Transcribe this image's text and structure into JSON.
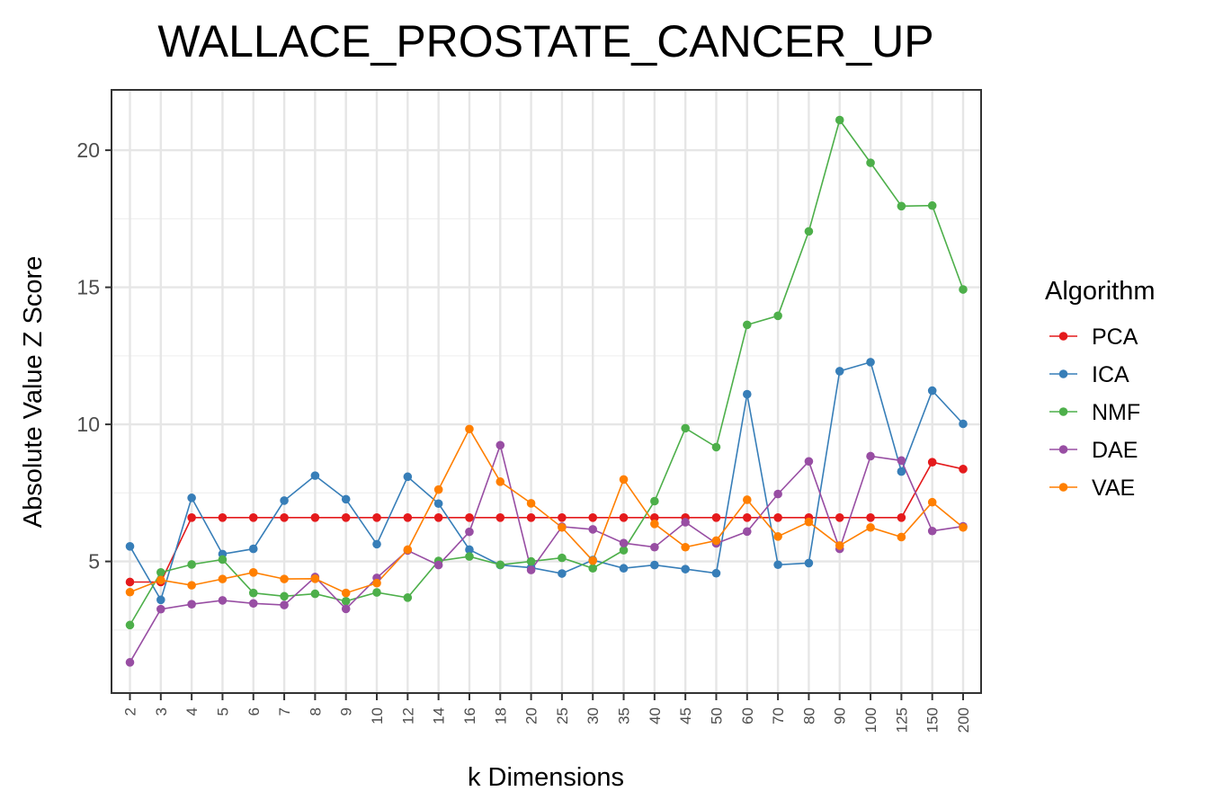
{
  "chart_data": {
    "type": "line",
    "title": "WALLACE_PROSTATE_CANCER_UP",
    "xlabel": "k Dimensions",
    "ylabel": "Absolute Value Z Score",
    "categories": [
      "2",
      "3",
      "4",
      "5",
      "6",
      "7",
      "8",
      "9",
      "10",
      "12",
      "14",
      "16",
      "18",
      "20",
      "25",
      "30",
      "35",
      "40",
      "45",
      "50",
      "60",
      "70",
      "80",
      "90",
      "100",
      "125",
      "150",
      "200"
    ],
    "yticks": [
      "5",
      "10",
      "15",
      "20"
    ],
    "ylim": [
      0.2,
      22.2
    ],
    "grid": true,
    "legend": {
      "title": "Algorithm",
      "position": "right"
    },
    "series": [
      {
        "name": "PCA",
        "color": "#e41a1c",
        "values": [
          4.25,
          4.25,
          6.6,
          6.6,
          6.6,
          6.6,
          6.6,
          6.6,
          6.6,
          6.6,
          6.6,
          6.6,
          6.6,
          6.6,
          6.6,
          6.6,
          6.6,
          6.6,
          6.6,
          6.6,
          6.6,
          6.6,
          6.6,
          6.6,
          6.6,
          6.6,
          8.62,
          8.37
        ]
      },
      {
        "name": "ICA",
        "color": "#377eb8",
        "values": [
          5.55,
          3.6,
          7.32,
          5.27,
          5.46,
          7.22,
          8.13,
          7.27,
          5.63,
          8.09,
          7.11,
          5.43,
          4.87,
          4.77,
          4.56,
          5.05,
          4.75,
          4.87,
          4.72,
          4.57,
          11.1,
          4.88,
          4.94,
          11.94,
          12.27,
          8.28,
          11.23,
          10.02
        ]
      },
      {
        "name": "NMF",
        "color": "#4daf4a",
        "values": [
          2.68,
          4.6,
          4.89,
          5.07,
          3.85,
          3.73,
          3.82,
          3.55,
          3.87,
          3.68,
          5.02,
          5.18,
          4.88,
          5.0,
          5.13,
          4.75,
          5.41,
          7.2,
          9.86,
          9.17,
          13.63,
          13.96,
          17.04,
          21.1,
          19.54,
          17.96,
          17.98,
          14.92
        ]
      },
      {
        "name": "DAE",
        "color": "#984ea3",
        "values": [
          1.32,
          3.26,
          3.44,
          3.58,
          3.47,
          3.41,
          4.43,
          3.27,
          4.4,
          5.4,
          4.87,
          6.08,
          9.24,
          4.69,
          6.27,
          6.17,
          5.67,
          5.52,
          6.43,
          5.66,
          6.09,
          7.46,
          8.65,
          5.46,
          8.84,
          8.68,
          6.11,
          6.28
        ]
      },
      {
        "name": "VAE",
        "color": "#ff7f00",
        "values": [
          3.88,
          4.32,
          4.13,
          4.36,
          4.6,
          4.36,
          4.37,
          3.85,
          4.21,
          5.43,
          7.62,
          9.83,
          7.91,
          7.12,
          6.24,
          5.03,
          7.99,
          6.37,
          5.52,
          5.76,
          7.25,
          5.91,
          6.44,
          5.58,
          6.24,
          5.89,
          7.16,
          6.24
        ]
      }
    ]
  }
}
